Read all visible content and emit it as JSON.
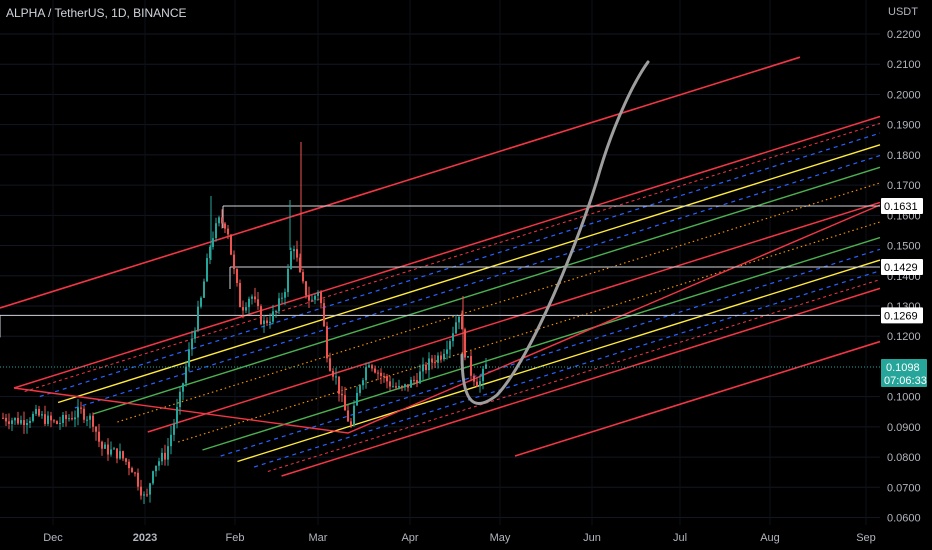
{
  "header": {
    "title": "ALPHA / TetherUS, 1D, BINANCE"
  },
  "chart_data": {
    "type": "candlestick",
    "title": "ALPHA / TetherUS, 1D, BINANCE",
    "currency_label": "USDT",
    "price_axis": {
      "ticks": [
        "0.2200",
        "0.2100",
        "0.2000",
        "0.1900",
        "0.1800",
        "0.1700",
        "0.1600",
        "0.1500",
        "0.1400",
        "0.1300",
        "0.1200",
        "0.1000",
        "0.0900",
        "0.0800",
        "0.0700",
        "0.0600"
      ],
      "range": [
        0.057,
        0.225
      ]
    },
    "time_axis": {
      "ticks": [
        "Dec",
        "2023",
        "Feb",
        "Mar",
        "Apr",
        "May",
        "Jun",
        "Jul",
        "Aug",
        "Sep"
      ]
    },
    "price_tags": [
      {
        "label": "0.1631",
        "value": 0.1631,
        "style": "white"
      },
      {
        "label": "0.1429",
        "value": 0.1429,
        "style": "white"
      },
      {
        "label": "0.1269",
        "value": 0.1269,
        "style": "white"
      }
    ],
    "current_price": {
      "label": "0.1098",
      "countdown": "07:06:33",
      "value": 0.1098,
      "color": "#26a69a"
    },
    "colors": {
      "up": "#26a69a",
      "down": "#ef5350",
      "channel": "#f23645",
      "yellow": "#ffeb3b",
      "green": "#4caf50",
      "blue": "#2962ff",
      "orange": "#ff9800",
      "projection": "#9e9e9e"
    }
  }
}
